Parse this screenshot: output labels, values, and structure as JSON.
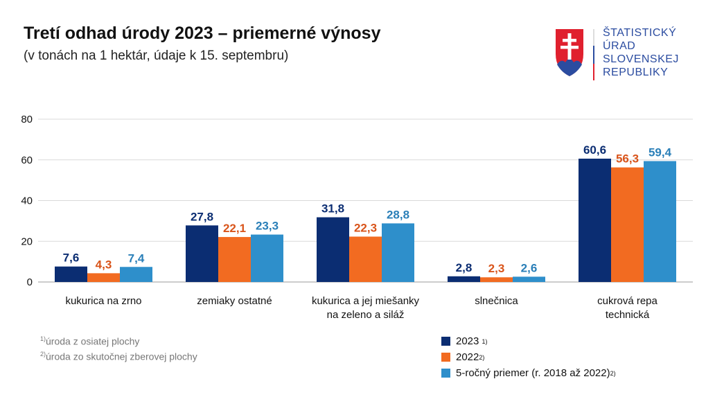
{
  "title": "Tretí odhad úrody 2023 – priemerné výnosy",
  "subtitle": "(v tonách na 1 hektár, údaje k 15. septembru)",
  "logo": {
    "lines": [
      "ŠTATISTICKÝ",
      "ÚRAD",
      "SLOVENSKEJ",
      "REPUBLIKY"
    ]
  },
  "footnotes": [
    {
      "mark": "1)",
      "text": "úroda z osiatej plochy"
    },
    {
      "mark": "2)",
      "text": "úroda zo skutočnej zberovej plochy"
    }
  ],
  "chart_data": {
    "type": "bar",
    "categories": [
      [
        "kukurica na zrno"
      ],
      [
        "zemiaky ostatné"
      ],
      [
        "kukurica a jej miešanky",
        "na zeleno a siláž"
      ],
      [
        "slnečnica"
      ],
      [
        "cukrová repa",
        "technická"
      ]
    ],
    "series": [
      {
        "name": "2023",
        "mark": "1)",
        "color": "#0b2d72",
        "label_color": "#0b2d72",
        "values": [
          7.6,
          27.8,
          31.8,
          2.8,
          60.6
        ],
        "labels": [
          "7,6",
          "27,8",
          "31,8",
          "2,8",
          "60,6"
        ]
      },
      {
        "name": "2022",
        "mark": "2)",
        "color": "#f26b21",
        "label_color": "#d9541a",
        "values": [
          4.3,
          22.1,
          22.3,
          2.3,
          56.3
        ],
        "labels": [
          "4,3",
          "22,1",
          "22,3",
          "2,3",
          "56,3"
        ]
      },
      {
        "name": "5-ročný priemer (r. 2018 až 2022)",
        "mark": "2)",
        "color": "#2e8fcb",
        "label_color": "#2a7fb8",
        "values": [
          7.4,
          23.3,
          28.8,
          2.6,
          59.4
        ],
        "labels": [
          "7,4",
          "23,3",
          "28,8",
          "2,6",
          "59,4"
        ]
      }
    ],
    "yticks": [
      0,
      20,
      40,
      60,
      80
    ],
    "ylim": [
      0,
      80
    ],
    "grid": true,
    "legend_position": "bottom-right"
  }
}
